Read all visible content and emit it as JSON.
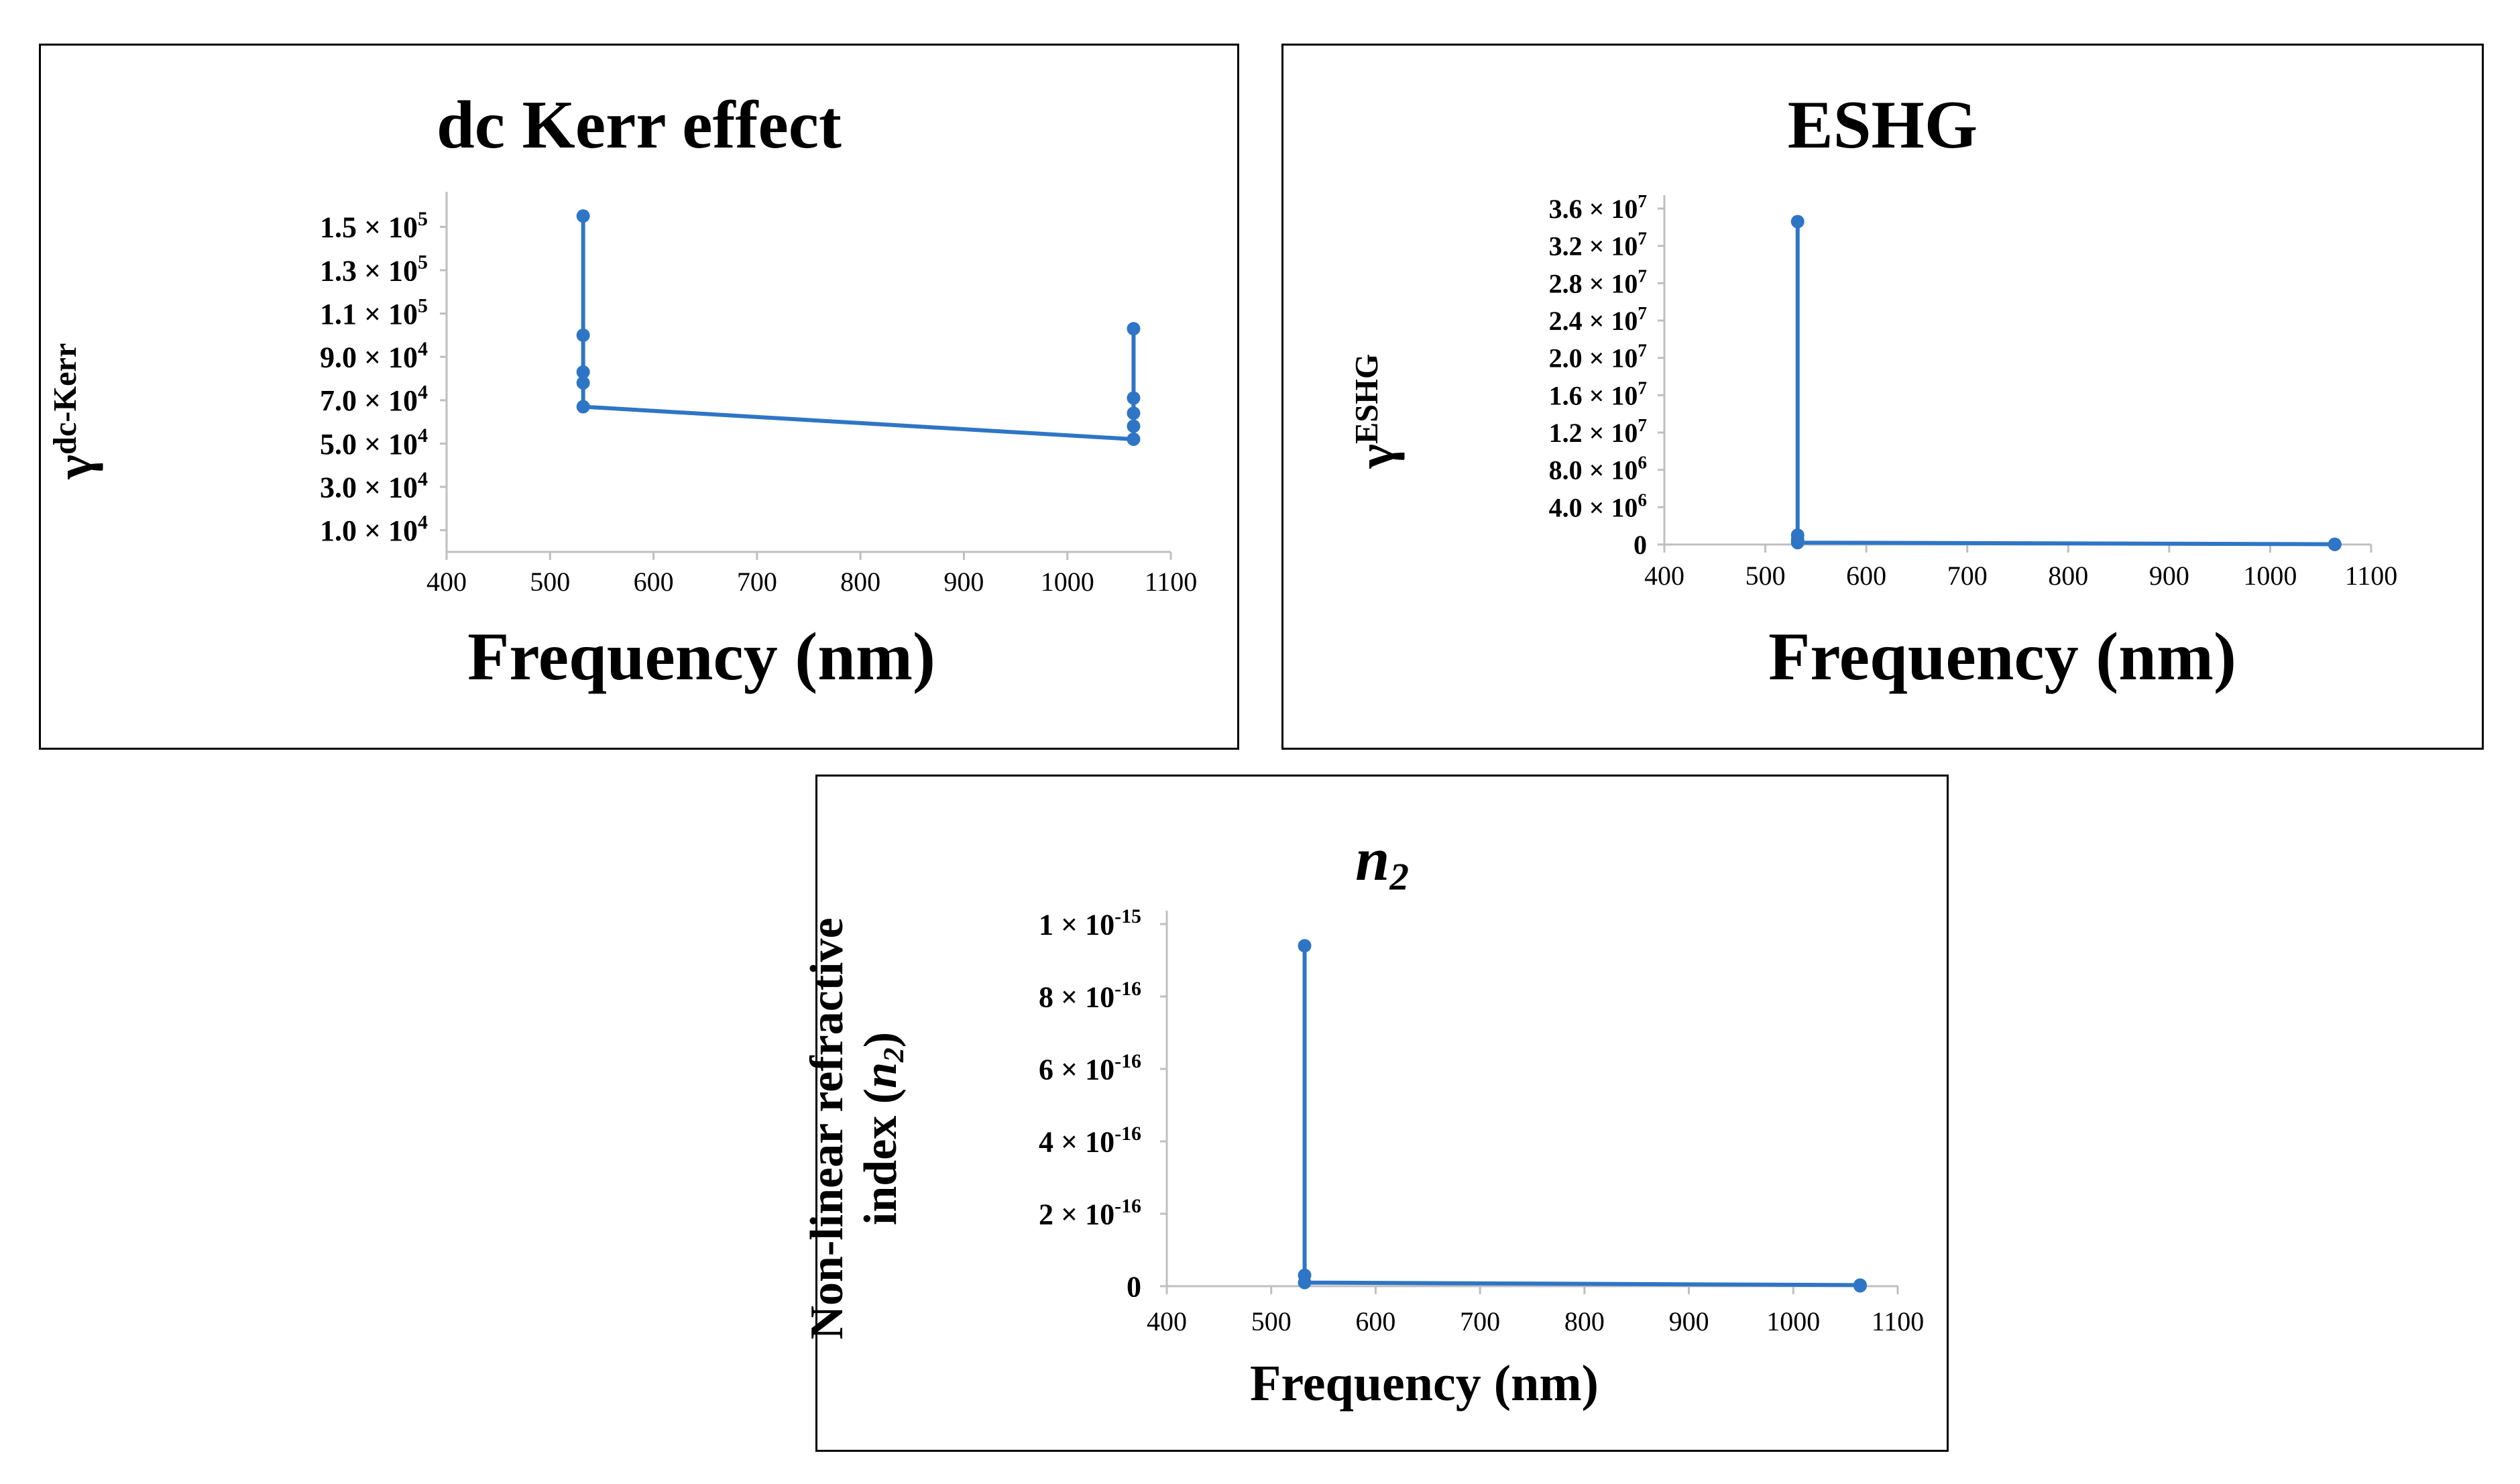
{
  "chart_data": [
    {
      "type": "line",
      "title": "dc Kerr effect",
      "xlabel": "Frequency (nm)",
      "ylabel_symbol": "γ",
      "ylabel_super": "dc-Kerr",
      "xlim": [
        400,
        1100
      ],
      "ylim": [
        0,
        160000
      ],
      "xticks": [
        400,
        500,
        600,
        700,
        800,
        900,
        1000,
        1100
      ],
      "yticks": [
        {
          "value": 10000,
          "mant": "1.0",
          "exp": "4"
        },
        {
          "value": 30000,
          "mant": "3.0",
          "exp": "4"
        },
        {
          "value": 50000,
          "mant": "5.0",
          "exp": "4"
        },
        {
          "value": 70000,
          "mant": "7.0",
          "exp": "4"
        },
        {
          "value": 90000,
          "mant": "9.0",
          "exp": "4"
        },
        {
          "value": 110000,
          "mant": "1.1",
          "exp": "5"
        },
        {
          "value": 130000,
          "mant": "1.3",
          "exp": "5"
        },
        {
          "value": 150000,
          "mant": "1.5",
          "exp": "5"
        }
      ],
      "series": [
        {
          "name": "γdc-Kerr",
          "x": [
            532,
            532,
            532,
            532,
            532,
            1064,
            1064,
            1064,
            1064,
            1064
          ],
          "y": [
            155000,
            100000,
            83000,
            78000,
            67000,
            52000,
            58000,
            64000,
            71000,
            103000
          ]
        }
      ]
    },
    {
      "type": "line",
      "title": "ESHG",
      "xlabel": "Frequency (nm)",
      "ylabel_symbol": "γ",
      "ylabel_super": "ESHG",
      "xlim": [
        400,
        1100
      ],
      "ylim": [
        0,
        36000000
      ],
      "xticks": [
        400,
        500,
        600,
        700,
        800,
        900,
        1000,
        1100
      ],
      "yticks": [
        {
          "value": 0,
          "mant": "0",
          "exp": ""
        },
        {
          "value": 4000000,
          "mant": "4.0",
          "exp": "6"
        },
        {
          "value": 8000000,
          "mant": "8.0",
          "exp": "6"
        },
        {
          "value": 12000000,
          "mant": "1.2",
          "exp": "7"
        },
        {
          "value": 16000000,
          "mant": "1.6",
          "exp": "7"
        },
        {
          "value": 20000000,
          "mant": "2.0",
          "exp": "7"
        },
        {
          "value": 24000000,
          "mant": "2.4",
          "exp": "7"
        },
        {
          "value": 28000000,
          "mant": "2.8",
          "exp": "7"
        },
        {
          "value": 32000000,
          "mant": "3.2",
          "exp": "7"
        },
        {
          "value": 36000000,
          "mant": "3.6",
          "exp": "7"
        }
      ],
      "series": [
        {
          "name": "γESHG",
          "x": [
            532,
            532,
            532,
            532,
            1064,
            1064
          ],
          "y": [
            34600000,
            1000000,
            500000,
            200000,
            30000,
            10000
          ]
        }
      ]
    },
    {
      "type": "line",
      "title_symbol": "n",
      "title_sub": "2",
      "xlabel": "Frequency (nm)",
      "ylabel_line1": "Non-linear refractive",
      "ylabel_line2_text": "index (",
      "ylabel_line2_symbol": "n",
      "ylabel_line2_sub": "2",
      "ylabel_line2_end": ")",
      "xlim": [
        400,
        1100
      ],
      "ylim": [
        0,
        1e-15
      ],
      "xticks": [
        400,
        500,
        600,
        700,
        800,
        900,
        1000,
        1100
      ],
      "yticks": [
        {
          "value": 0,
          "mant": "0",
          "exp": ""
        },
        {
          "value": 2e-16,
          "mant": "2",
          "exp": "-16"
        },
        {
          "value": 4e-16,
          "mant": "4",
          "exp": "-16"
        },
        {
          "value": 6e-16,
          "mant": "6",
          "exp": "-16"
        },
        {
          "value": 8e-16,
          "mant": "8",
          "exp": "-16"
        },
        {
          "value": 1e-15,
          "mant": "1",
          "exp": "-15"
        }
      ],
      "series": [
        {
          "name": "n2",
          "x": [
            532,
            532,
            532,
            1064,
            1064
          ],
          "y": [
            9.4e-16,
            3e-17,
            1e-17,
            3e-18,
            1e-18
          ]
        }
      ]
    }
  ],
  "colors": {
    "series": "#2E75C6",
    "axis": "#BFBFBF",
    "frame": "#000000"
  }
}
